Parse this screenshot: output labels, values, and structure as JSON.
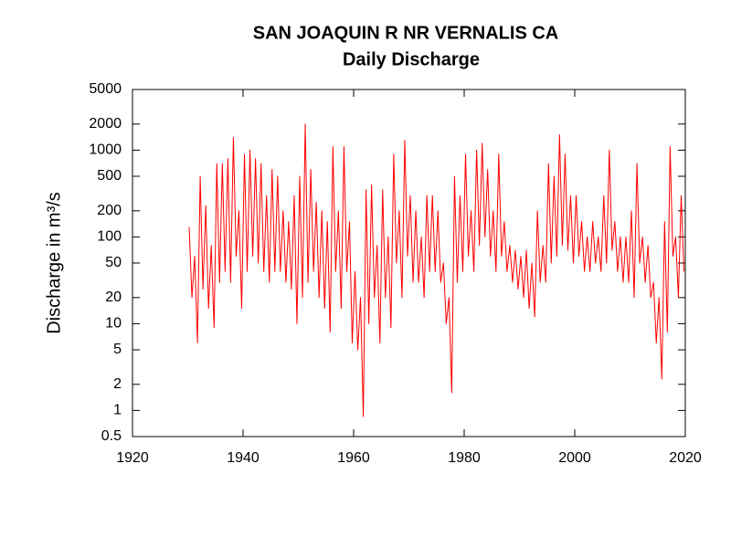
{
  "chart_data": {
    "type": "line",
    "title": "SAN JOAQUIN R NR VERNALIS CA",
    "subtitle": "Daily Discharge",
    "y_label": "Discharge in m³/s",
    "y_scale": "log",
    "xlim": [
      1920,
      2020
    ],
    "xticks": [
      1920,
      1940,
      1960,
      1980,
      2000,
      2020
    ],
    "ylim": [
      0.5,
      5000
    ],
    "yticks": [
      0.5,
      1,
      2,
      5,
      10,
      20,
      50,
      100,
      200,
      500,
      1000,
      2000,
      5000
    ],
    "x": [
      1930.25,
      1930.75,
      1931.25,
      1931.75,
      1932.25,
      1932.75,
      1933.25,
      1933.75,
      1934.25,
      1934.75,
      1935.25,
      1935.75,
      1936.25,
      1936.75,
      1937.25,
      1937.75,
      1938.25,
      1938.75,
      1939.25,
      1939.75,
      1940.25,
      1940.75,
      1941.25,
      1941.75,
      1942.25,
      1942.75,
      1943.25,
      1943.75,
      1944.25,
      1944.75,
      1945.25,
      1945.75,
      1946.25,
      1946.75,
      1947.25,
      1947.75,
      1948.25,
      1948.75,
      1949.25,
      1949.75,
      1950.25,
      1950.75,
      1951.25,
      1951.75,
      1952.25,
      1952.75,
      1953.25,
      1953.75,
      1954.25,
      1954.75,
      1955.25,
      1955.75,
      1956.25,
      1956.75,
      1957.25,
      1957.75,
      1958.25,
      1958.75,
      1959.25,
      1959.75,
      1960.25,
      1960.75,
      1961.25,
      1961.75,
      1962.25,
      1962.75,
      1963.25,
      1963.75,
      1964.25,
      1964.75,
      1965.25,
      1965.75,
      1966.25,
      1966.75,
      1967.25,
      1967.75,
      1968.25,
      1968.75,
      1969.25,
      1969.75,
      1970.25,
      1970.75,
      1971.25,
      1971.75,
      1972.25,
      1972.75,
      1973.25,
      1973.75,
      1974.25,
      1974.75,
      1975.25,
      1975.75,
      1976.25,
      1976.75,
      1977.25,
      1977.75,
      1978.25,
      1978.75,
      1979.25,
      1979.75,
      1980.25,
      1980.75,
      1981.25,
      1981.75,
      1982.25,
      1982.75,
      1983.25,
      1983.75,
      1984.25,
      1984.75,
      1985.25,
      1985.75,
      1986.25,
      1986.75,
      1987.25,
      1987.75,
      1988.25,
      1988.75,
      1989.25,
      1989.75,
      1990.25,
      1990.75,
      1991.25,
      1991.75,
      1992.25,
      1992.75,
      1993.25,
      1993.75,
      1994.25,
      1994.75,
      1995.25,
      1995.75,
      1996.25,
      1996.75,
      1997.25,
      1997.75,
      1998.25,
      1998.75,
      1999.25,
      1999.75,
      2000.25,
      2000.75,
      2001.25,
      2001.75,
      2002.25,
      2002.75,
      2003.25,
      2003.75,
      2004.25,
      2004.75,
      2005.25,
      2005.75,
      2006.25,
      2006.75,
      2007.25,
      2007.75,
      2008.25,
      2008.75,
      2009.25,
      2009.75,
      2010.25,
      2010.75,
      2011.25,
      2011.75,
      2012.25,
      2012.75,
      2013.25,
      2013.75,
      2014.25,
      2014.75,
      2015.25,
      2015.75,
      2016.25,
      2016.75,
      2017.25,
      2017.75,
      2018.25,
      2018.75,
      2019.25,
      2019.75
    ],
    "series": [
      {
        "color": "#ff0000",
        "values": [
          130,
          20,
          60,
          6,
          500,
          25,
          230,
          15,
          80,
          9,
          700,
          30,
          700,
          40,
          800,
          30,
          1400,
          60,
          200,
          15,
          900,
          40,
          1000,
          60,
          800,
          50,
          700,
          40,
          300,
          30,
          600,
          40,
          500,
          40,
          200,
          30,
          150,
          25,
          300,
          10,
          500,
          20,
          2000,
          30,
          600,
          40,
          250,
          20,
          200,
          15,
          150,
          8,
          1100,
          40,
          200,
          15,
          1100,
          40,
          150,
          6,
          40,
          5,
          20,
          0.85,
          350,
          10,
          400,
          20,
          80,
          6,
          350,
          20,
          100,
          9,
          900,
          50,
          200,
          20,
          1300,
          60,
          300,
          30,
          200,
          30,
          100,
          20,
          300,
          40,
          300,
          40,
          200,
          30,
          50,
          10,
          20,
          1.6,
          500,
          30,
          300,
          40,
          900,
          60,
          200,
          40,
          1000,
          80,
          1200,
          100,
          600,
          60,
          200,
          40,
          900,
          60,
          150,
          40,
          80,
          30,
          70,
          25,
          60,
          20,
          70,
          15,
          50,
          12,
          200,
          30,
          80,
          30,
          700,
          50,
          500,
          60,
          1500,
          80,
          900,
          70,
          300,
          50,
          300,
          60,
          150,
          40,
          100,
          40,
          150,
          50,
          100,
          40,
          300,
          50,
          1000,
          70,
          150,
          40,
          100,
          30,
          100,
          30,
          200,
          20,
          700,
          50,
          100,
          30,
          80,
          20,
          30,
          6,
          20,
          2.3,
          150,
          8,
          1100,
          60,
          100,
          20,
          300,
          40
        ]
      }
    ]
  }
}
